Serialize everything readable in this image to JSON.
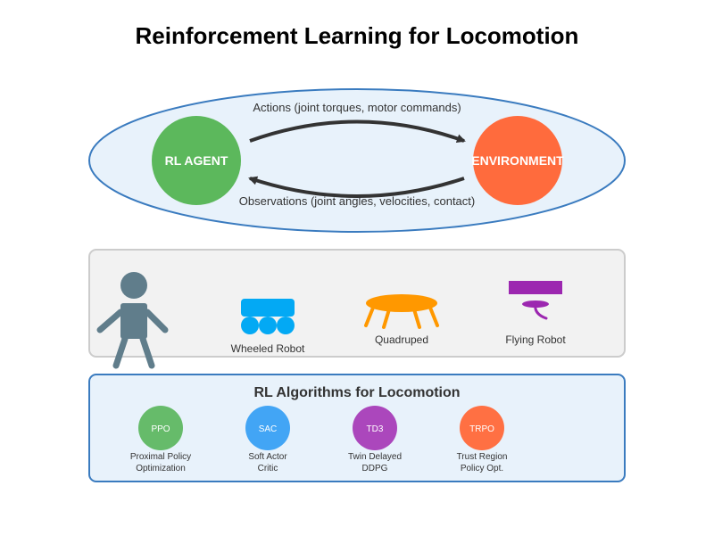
{
  "title": "Reinforcement Learning for Locomotion",
  "loop": {
    "actions_label": "Actions (joint torques, motor commands)",
    "observations_label": "Observations (joint angles, velocities, contact)",
    "agent": {
      "label": "RL AGENT",
      "color": "#5cb85c"
    },
    "environment": {
      "label": "ENVIRONMENT",
      "color": "#ff6b3d"
    },
    "ellipse_fill": "#e8f2fb",
    "ellipse_stroke": "#3a7bbf"
  },
  "robots": {
    "items": [
      {
        "label": "",
        "icon": "humanoid-robot-icon",
        "color": "#607d8b"
      },
      {
        "label": "Wheeled Robot",
        "icon": "wheeled-robot-icon",
        "color": "#03a9f4"
      },
      {
        "label": "Quadruped",
        "icon": "quadruped-robot-icon",
        "color": "#ff9800"
      },
      {
        "label": "Flying Robot",
        "icon": "flying-robot-icon",
        "color": "#9c27b0"
      }
    ]
  },
  "algorithms": {
    "title": "RL Algorithms for Locomotion",
    "items": [
      {
        "abbr": "PPO",
        "line1": "Proximal Policy",
        "line2": "Optimization",
        "color": "#66bb6a"
      },
      {
        "abbr": "SAC",
        "line1": "Soft Actor",
        "line2": "Critic",
        "color": "#42a5f5"
      },
      {
        "abbr": "TD3",
        "line1": "Twin Delayed",
        "line2": "DDPG",
        "color": "#ab47bc"
      },
      {
        "abbr": "TRPO",
        "line1": "Trust Region",
        "line2": "Policy Opt.",
        "color": "#ff7043"
      }
    ]
  }
}
